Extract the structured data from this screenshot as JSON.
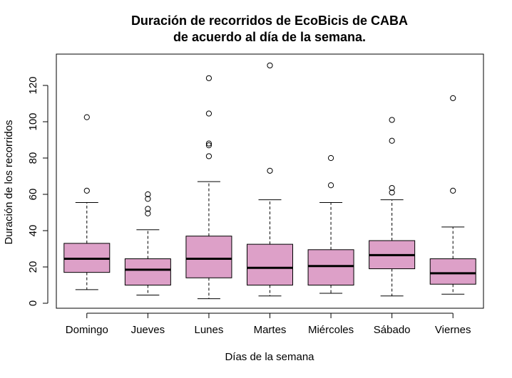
{
  "chart_data": {
    "type": "boxplot",
    "title": "Duración de recorridos de EcoBicis de CABA",
    "subtitle": "de acuerdo al día de la semana.",
    "xlabel": "Días de la semana",
    "ylabel": "Duración de los recorridos",
    "ylim": [
      0,
      130
    ],
    "yticks": [
      0,
      20,
      40,
      60,
      80,
      100,
      120
    ],
    "box_color": "#DDA0C8",
    "grid": false,
    "categories": [
      "Domingo",
      "Jueves",
      "Lunes",
      "Martes",
      "Miércoles",
      "Sábado",
      "Viernes"
    ],
    "boxes": [
      {
        "category": "Domingo",
        "whisker_low": 7.5,
        "q1": 17,
        "median": 24.5,
        "q3": 33,
        "whisker_high": 55.5,
        "outliers": [
          62,
          102.5
        ]
      },
      {
        "category": "Jueves",
        "whisker_low": 4.5,
        "q1": 10,
        "median": 18.5,
        "q3": 24.5,
        "whisker_high": 40.5,
        "outliers": [
          49.5,
          52,
          57.5,
          60
        ]
      },
      {
        "category": "Lunes",
        "whisker_low": 2.5,
        "q1": 14,
        "median": 24.5,
        "q3": 37,
        "whisker_high": 67,
        "outliers": [
          81,
          87,
          88,
          104.5,
          124
        ]
      },
      {
        "category": "Martes",
        "whisker_low": 4,
        "q1": 10,
        "median": 19.5,
        "q3": 32.5,
        "whisker_high": 57,
        "outliers": [
          73,
          131
        ]
      },
      {
        "category": "Miércoles",
        "whisker_low": 5.5,
        "q1": 10,
        "median": 20.5,
        "q3": 29.5,
        "whisker_high": 55.5,
        "outliers": [
          65,
          80
        ]
      },
      {
        "category": "Sábado",
        "whisker_low": 4,
        "q1": 19,
        "median": 26.5,
        "q3": 34.5,
        "whisker_high": 57,
        "outliers": [
          61,
          63.5,
          89.5,
          101
        ]
      },
      {
        "category": "Viernes",
        "whisker_low": 5,
        "q1": 10.5,
        "median": 16.5,
        "q3": 24.5,
        "whisker_high": 42,
        "outliers": [
          62,
          113
        ]
      }
    ]
  }
}
